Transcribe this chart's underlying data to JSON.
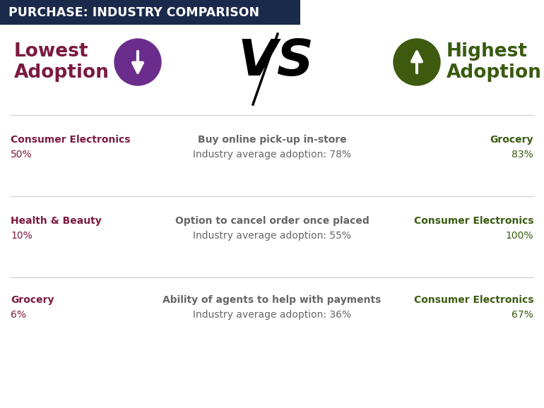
{
  "title": "PURCHASE: INDUSTRY COMPARISON",
  "title_bg_color": "#1a2a4a",
  "title_text_color": "#ffffff",
  "lowest_label": "Lowest\nAdoption",
  "highest_label": "Highest\nAdoption",
  "lowest_circle_color": "#6b2d8b",
  "highest_circle_color": "#3d5a0e",
  "dark_maroon": "#7b1a40",
  "dark_green": "#3a5a10",
  "gray": "#666666",
  "bg_color": "#ffffff",
  "divider_color": "#cccccc",
  "rows": [
    {
      "low_label": "Consumer Electronics",
      "low_value": "50%",
      "center_feature": "Buy online pick-up in-store",
      "center_avg": "Industry average adoption: 78%",
      "high_label": "Grocery",
      "high_value": "83%"
    },
    {
      "low_label": "Health & Beauty",
      "low_value": "10%",
      "center_feature": "Option to cancel order once placed",
      "center_avg": "Industry average adoption: 55%",
      "high_label": "Consumer Electronics",
      "high_value": "100%"
    },
    {
      "low_label": "Grocery",
      "low_value": "6%",
      "center_feature": "Ability of agents to help with payments",
      "center_avg": "Industry average adoption: 36%",
      "high_label": "Consumer Electronics",
      "high_value": "67%"
    }
  ]
}
